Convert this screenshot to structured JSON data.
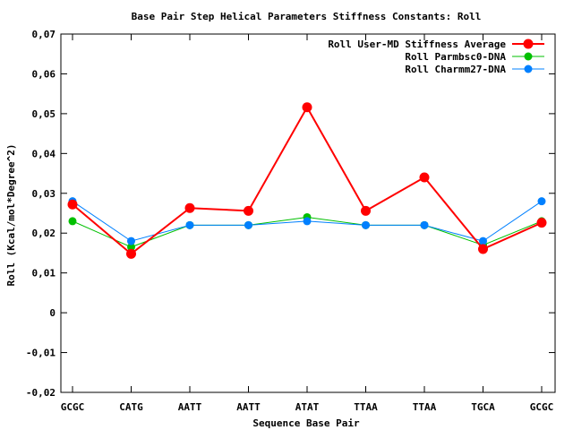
{
  "chart_data": {
    "type": "line",
    "title": "Base Pair Step Helical Parameters Stiffness Constants: Roll",
    "xlabel": "Sequence Base Pair",
    "ylabel": "Roll (Kcal/mol*Degree^2)",
    "categories": [
      "GCGC",
      "CATG",
      "AATT",
      "AATT",
      "ATAT",
      "TTAA",
      "TTAA",
      "TGCA",
      "GCGC"
    ],
    "ylim": [
      -0.02,
      0.07
    ],
    "yticks": [
      -0.02,
      -0.01,
      0,
      0.01,
      0.02,
      0.03,
      0.04,
      0.05,
      0.06,
      0.07
    ],
    "ytick_labels": [
      "-0,02",
      "-0,01",
      "0",
      "0,01",
      "0,02",
      "0,03",
      "0,04",
      "0,05",
      "0,06",
      "0,07"
    ],
    "grid": false,
    "legend_position": "top-right",
    "series": [
      {
        "name": "Roll User-MD Stiffness Average",
        "color": "#ff0000",
        "values": [
          0.0272,
          0.0148,
          0.0263,
          0.0256,
          0.0516,
          0.0256,
          0.034,
          0.016,
          0.0226
        ]
      },
      {
        "name": "Roll Parmbsc0-DNA",
        "color": "#00c000",
        "values": [
          0.023,
          0.0165,
          0.022,
          0.022,
          0.024,
          0.022,
          0.022,
          0.017,
          0.023
        ]
      },
      {
        "name": "Roll Charmm27-DNA",
        "color": "#0080ff",
        "values": [
          0.028,
          0.018,
          0.022,
          0.022,
          0.023,
          0.022,
          0.022,
          0.018,
          0.028
        ]
      }
    ]
  }
}
